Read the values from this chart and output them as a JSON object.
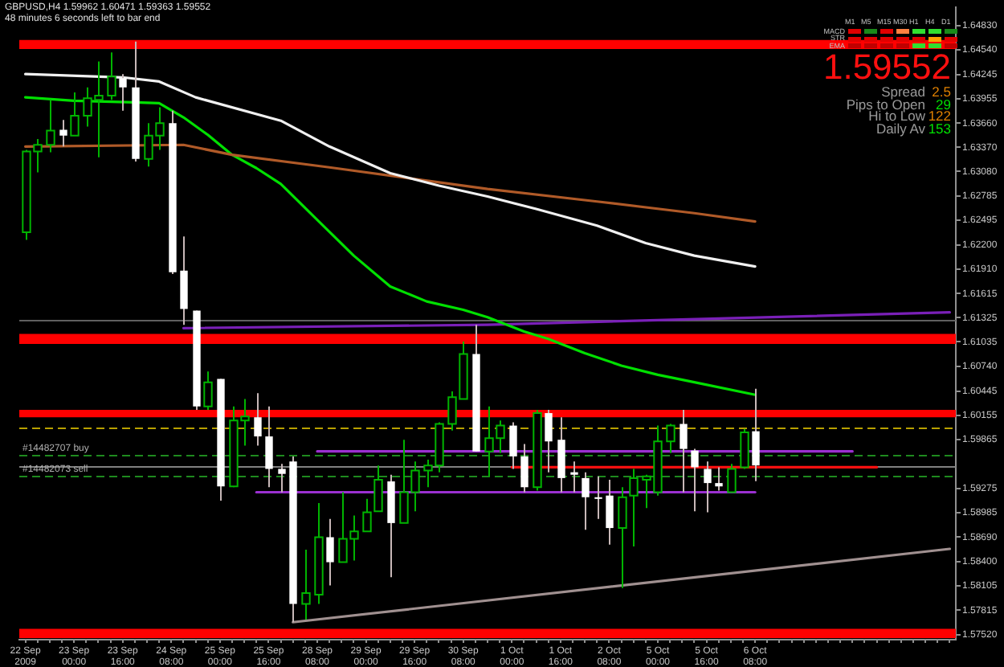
{
  "chart_data": {
    "type": "candlestick",
    "title": "GBPUSD,H4  1.59962 1.60471 1.59363 1.59552",
    "subtitle": "48 minutes 6 seconds left to bar end",
    "categories": [
      "22 Sep 2009",
      null,
      null,
      null,
      "23 Sep 00:00",
      null,
      null,
      null,
      "23 Sep 16:00",
      null,
      null,
      null,
      "24 Sep 08:00",
      null,
      null,
      null,
      "25 Sep 00:00",
      null,
      null,
      null,
      "25 Sep 16:00",
      null,
      null,
      null,
      "28 Sep 08:00",
      null,
      null,
      null,
      "29 Sep 00:00",
      null,
      null,
      null,
      "29 Sep 16:00",
      null,
      null,
      null,
      "30 Sep 08:00",
      null,
      null,
      null,
      "1 Oct 00:00",
      null,
      null,
      null,
      "1 Oct 16:00",
      null,
      null,
      null,
      "2 Oct 08:00",
      null,
      null,
      null,
      "5 Oct 00:00",
      null,
      null,
      null,
      "5 Oct 16:00",
      null,
      null,
      null,
      "6 Oct 08:00",
      null,
      null,
      null,
      null,
      null,
      null,
      null,
      null,
      null,
      null,
      null,
      null,
      null,
      null,
      null,
      null
    ],
    "ohlc": [
      [
        1.6235,
        1.6334,
        1.6226,
        1.6332
      ],
      [
        1.6332,
        1.6347,
        1.6307,
        1.634
      ],
      [
        1.634,
        1.6394,
        1.6331,
        1.6357
      ],
      [
        1.6358,
        1.637,
        1.6338,
        1.6351
      ],
      [
        1.6351,
        1.6403,
        1.6351,
        1.6375
      ],
      [
        1.6375,
        1.6409,
        1.6362,
        1.6396
      ],
      [
        1.6394,
        1.644,
        1.6325,
        1.6399
      ],
      [
        1.6399,
        1.6451,
        1.6394,
        1.6422
      ],
      [
        1.642,
        1.6425,
        1.6381,
        1.6409
      ],
      [
        1.6409,
        1.6464,
        1.632,
        1.6323
      ],
      [
        1.6323,
        1.6366,
        1.6314,
        1.6351
      ],
      [
        1.6351,
        1.6385,
        1.6334,
        1.6366
      ],
      [
        1.6366,
        1.6381,
        1.6185,
        1.6187
      ],
      [
        1.6189,
        1.623,
        1.6124,
        1.6143
      ],
      [
        1.6141,
        1.6141,
        1.6022,
        1.6026
      ],
      [
        1.6026,
        1.6068,
        1.6022,
        1.6055
      ],
      [
        1.6059,
        1.6059,
        1.5913,
        1.593
      ],
      [
        1.593,
        1.6026,
        1.5929,
        1.6009
      ],
      [
        1.6009,
        1.6035,
        1.5979,
        1.6014
      ],
      [
        1.6013,
        1.6042,
        1.5979,
        1.599
      ],
      [
        1.599,
        1.6026,
        1.5929,
        1.5951
      ],
      [
        1.5951,
        1.5957,
        1.5923,
        1.5945
      ],
      [
        1.596,
        1.5966,
        1.5767,
        1.5789
      ],
      [
        1.5789,
        1.5854,
        1.577,
        1.5802
      ],
      [
        1.58,
        1.591,
        1.5789,
        1.5869
      ],
      [
        1.5869,
        1.5891,
        1.5811,
        1.5839
      ],
      [
        1.5839,
        1.5923,
        1.5839,
        1.5867
      ],
      [
        1.5867,
        1.5895,
        1.5841,
        1.5876
      ],
      [
        1.5876,
        1.5915,
        1.5876,
        1.5899
      ],
      [
        1.59,
        1.5955,
        1.59,
        1.5938
      ],
      [
        1.5936,
        1.5944,
        1.5821,
        1.5886
      ],
      [
        1.5886,
        1.5986,
        1.5886,
        1.5923
      ],
      [
        1.5923,
        1.596,
        1.59,
        1.5949
      ],
      [
        1.5949,
        1.5962,
        1.5929,
        1.5955
      ],
      [
        1.5955,
        1.6007,
        1.5947,
        1.6005
      ],
      [
        1.6005,
        1.6044,
        1.5997,
        1.6037
      ],
      [
        1.6035,
        1.6104,
        1.6035,
        1.6089
      ],
      [
        1.6089,
        1.6124,
        1.5972,
        1.5972
      ],
      [
        1.5972,
        1.6026,
        1.5942,
        1.5988
      ],
      [
        1.5988,
        1.6009,
        1.597,
        1.6003
      ],
      [
        1.6003,
        1.6007,
        1.5951,
        1.5966
      ],
      [
        1.5966,
        1.5981,
        1.5923,
        1.5929
      ],
      [
        1.5929,
        1.6022,
        1.5925,
        1.6018
      ],
      [
        1.6018,
        1.6022,
        1.5947,
        1.5984
      ],
      [
        1.5986,
        1.6013,
        1.5923,
        1.594
      ],
      [
        1.5947,
        1.596,
        1.5923,
        1.5944
      ],
      [
        1.594,
        1.5947,
        1.5878,
        1.5917
      ],
      [
        1.5917,
        1.5942,
        1.5891,
        1.5915
      ],
      [
        1.5919,
        1.5938,
        1.586,
        1.588
      ],
      [
        1.588,
        1.5929,
        1.5808,
        1.5917
      ],
      [
        1.5919,
        1.5951,
        1.5858,
        1.594
      ],
      [
        1.5938,
        1.5944,
        1.5904,
        1.5942
      ],
      [
        1.5923,
        1.6003,
        1.5919,
        1.5984
      ],
      [
        1.5984,
        1.6005,
        1.597,
        1.6003
      ],
      [
        1.6005,
        1.6022,
        1.5923,
        1.5975
      ],
      [
        1.5973,
        1.5975,
        1.59,
        1.5953
      ],
      [
        1.5951,
        1.596,
        1.5899,
        1.5934
      ],
      [
        1.5934,
        1.5953,
        1.5925,
        1.593
      ],
      [
        1.5923,
        1.5957,
        1.5923,
        1.5951
      ],
      [
        1.5953,
        1.5999,
        1.5951,
        1.5995
      ],
      [
        1.59962,
        1.60471,
        1.59363,
        1.59552
      ],
      null,
      null,
      null,
      null,
      null,
      null,
      null,
      null,
      null,
      null,
      null,
      null,
      null,
      null,
      null,
      null
    ],
    "series": [
      {
        "type": "line",
        "color": "#f0f0f0",
        "values": [
          1.6425,
          null,
          null,
          null,
          null,
          null,
          null,
          null,
          1.6421,
          null,
          null,
          1.6416,
          null,
          null,
          1.6397,
          null,
          null,
          null,
          null,
          null,
          null,
          1.6369,
          null,
          null,
          null,
          1.6338,
          null,
          null,
          null,
          null,
          1.6306,
          null,
          null,
          null,
          1.6291,
          null,
          null,
          null,
          1.6278,
          null,
          null,
          null,
          1.6263,
          null,
          null,
          null,
          null,
          1.6243,
          null,
          null,
          null,
          1.6222,
          null,
          null,
          null,
          1.6207,
          null,
          null,
          null,
          null,
          1.6194,
          null,
          null,
          null,
          null,
          null,
          null,
          null,
          null,
          null,
          null,
          null,
          null,
          null,
          null,
          null,
          null
        ]
      },
      {
        "type": "line",
        "color": "#b05a28",
        "values": [
          1.6338,
          null,
          null,
          null,
          null,
          null,
          null,
          null,
          null,
          null,
          null,
          null,
          null,
          1.634,
          null,
          null,
          null,
          1.6328,
          null,
          null,
          null,
          null,
          null,
          null,
          null,
          1.6313,
          null,
          null,
          null,
          null,
          null,
          null,
          null,
          null,
          1.6295,
          null,
          null,
          null,
          1.6287,
          null,
          null,
          null,
          null,
          null,
          null,
          null,
          null,
          1.6272,
          null,
          null,
          null,
          null,
          null,
          null,
          null,
          1.6258,
          null,
          null,
          null,
          null,
          1.6248,
          null,
          null,
          null,
          null,
          null,
          null,
          null,
          null,
          null,
          null,
          null,
          null,
          null,
          null,
          null,
          null
        ]
      },
      {
        "type": "line",
        "color": "#00e000",
        "values": [
          1.6397,
          null,
          null,
          null,
          1.6393,
          null,
          null,
          null,
          null,
          1.6391,
          null,
          1.639,
          null,
          1.6373,
          null,
          1.6352,
          null,
          1.6328,
          null,
          1.6312,
          null,
          1.6293,
          null,
          null,
          1.625,
          null,
          null,
          1.6207,
          null,
          null,
          1.617,
          null,
          null,
          1.6152,
          null,
          null,
          1.6142,
          null,
          1.6133,
          null,
          null,
          1.6116,
          null,
          1.6107,
          null,
          null,
          1.609,
          null,
          null,
          1.6075,
          null,
          null,
          1.6064,
          null,
          null,
          1.6055,
          null,
          null,
          null,
          null,
          1.604,
          null,
          null,
          null,
          null,
          null,
          null,
          null,
          null,
          null,
          null,
          null,
          null,
          null,
          null,
          null,
          null
        ]
      },
      {
        "type": "line",
        "color": "#7a20b8",
        "values": [
          null,
          null,
          null,
          null,
          null,
          null,
          null,
          null,
          null,
          null,
          null,
          null,
          null,
          1.612,
          null,
          null,
          null,
          null,
          null,
          null,
          null,
          null,
          null,
          null,
          null,
          null,
          null,
          null,
          null,
          null,
          null,
          null,
          null,
          null,
          null,
          null,
          null,
          null,
          1.6124,
          null,
          null,
          null,
          null,
          null,
          null,
          null,
          null,
          null,
          null,
          null,
          null,
          null,
          null,
          null,
          null,
          null,
          null,
          null,
          null,
          null,
          null,
          null,
          null,
          null,
          null,
          null,
          null,
          null,
          null,
          null,
          null,
          null,
          null,
          null,
          null,
          null,
          1.6139
        ]
      },
      {
        "type": "line",
        "color": "#9a30d0",
        "values": [
          null,
          null,
          null,
          null,
          null,
          null,
          null,
          null,
          null,
          null,
          null,
          null,
          null,
          null,
          null,
          null,
          null,
          null,
          null,
          null,
          null,
          null,
          null,
          null,
          1.5972,
          null,
          null,
          null,
          null,
          null,
          null,
          null,
          null,
          null,
          null,
          null,
          null,
          null,
          null,
          null,
          null,
          null,
          null,
          null,
          null,
          null,
          null,
          null,
          null,
          null,
          null,
          null,
          null,
          null,
          null,
          null,
          null,
          null,
          null,
          null,
          null,
          null,
          null,
          null,
          null,
          null,
          null,
          null,
          1.5972,
          null,
          null,
          null,
          null,
          null,
          null,
          null,
          null
        ]
      },
      {
        "type": "line",
        "color": "#9a30d0",
        "values": [
          null,
          null,
          null,
          null,
          null,
          null,
          null,
          null,
          null,
          null,
          null,
          null,
          null,
          null,
          null,
          null,
          null,
          null,
          null,
          1.5923,
          null,
          null,
          null,
          null,
          null,
          null,
          null,
          null,
          null,
          null,
          null,
          null,
          null,
          null,
          null,
          null,
          null,
          null,
          null,
          null,
          null,
          null,
          null,
          null,
          null,
          null,
          null,
          null,
          null,
          null,
          null,
          null,
          null,
          null,
          null,
          null,
          null,
          null,
          null,
          null,
          1.5923,
          null,
          null,
          null,
          null,
          null,
          null,
          null,
          null,
          null,
          null,
          null,
          null,
          null,
          null,
          null,
          null
        ]
      },
      {
        "type": "line",
        "color": "#ff1010",
        "values": [
          null,
          null,
          null,
          null,
          null,
          null,
          null,
          null,
          null,
          null,
          null,
          null,
          null,
          null,
          null,
          null,
          null,
          null,
          null,
          null,
          null,
          null,
          null,
          null,
          null,
          null,
          null,
          null,
          null,
          null,
          null,
          null,
          null,
          null,
          null,
          null,
          null,
          null,
          null,
          null,
          1.5953,
          null,
          null,
          null,
          null,
          null,
          null,
          null,
          null,
          null,
          null,
          null,
          null,
          null,
          null,
          null,
          null,
          null,
          null,
          null,
          null,
          null,
          null,
          null,
          null,
          null,
          null,
          null,
          null,
          null,
          1.5953,
          null,
          null,
          null,
          null,
          null,
          null
        ]
      },
      {
        "type": "line",
        "color": "#a09090",
        "values": [
          null,
          null,
          null,
          null,
          null,
          null,
          null,
          null,
          null,
          null,
          null,
          null,
          null,
          null,
          null,
          null,
          null,
          null,
          null,
          null,
          null,
          null,
          1.5767,
          null,
          null,
          null,
          null,
          null,
          null,
          null,
          null,
          null,
          null,
          null,
          null,
          null,
          null,
          null,
          null,
          null,
          null,
          null,
          null,
          null,
          null,
          null,
          null,
          null,
          null,
          null,
          null,
          null,
          null,
          null,
          null,
          null,
          null,
          null,
          null,
          null,
          null,
          null,
          null,
          null,
          null,
          null,
          null,
          null,
          null,
          null,
          null,
          null,
          null,
          null,
          null,
          null,
          1.5855
        ]
      }
    ],
    "bands": [
      {
        "axis": "y",
        "from": 1.6455,
        "to": 1.6466,
        "color": "#ff0000"
      },
      {
        "axis": "y",
        "from": 1.6101,
        "to": 1.6113,
        "color": "#ff0000"
      },
      {
        "axis": "y",
        "from": 1.6013,
        "to": 1.6022,
        "color": "#ff0000"
      },
      {
        "axis": "y",
        "from": 1.5748,
        "to": 1.5759,
        "color": "#ff0000"
      }
    ],
    "ref_lines": [
      {
        "axis": "y",
        "value": 1.613,
        "color": "#606060",
        "line_style": "solid"
      },
      {
        "axis": "y",
        "value": 1.6,
        "color": "#b8a000",
        "line_style": "dashed"
      },
      {
        "axis": "y",
        "value": 1.5968,
        "label": "#14482707 buy",
        "color": "#1e8a1e",
        "line_style": "dashed"
      },
      {
        "axis": "y",
        "value": 1.59552,
        "color": "#808080",
        "line_style": "solid"
      },
      {
        "axis": "y",
        "value": 1.5942,
        "label": "#14482073 sell",
        "color": "#1e8a1e",
        "line_style": "dashed"
      }
    ],
    "annotations": [
      "M1",
      "M5",
      "M15",
      "M30",
      "H1",
      "H4",
      "D1",
      "MACD",
      "STR",
      "EMA",
      "1.59552",
      "Spread",
      "2.5",
      "Pips to Open",
      "29",
      "Hi to Low",
      "122",
      "Daily Av",
      "153"
    ],
    "ylim": [
      1.5746,
      1.6505
    ],
    "yticks": [
      {
        "value": 1.6483,
        "label": "1.64830"
      },
      {
        "value": 1.6454,
        "label": "1.64540"
      },
      {
        "value": 1.64245,
        "label": "1.64245"
      },
      {
        "value": 1.63955,
        "label": "1.63955"
      },
      {
        "value": 1.6366,
        "label": "1.63660"
      },
      {
        "value": 1.6337,
        "label": "1.63370"
      },
      {
        "value": 1.6308,
        "label": "1.63080"
      },
      {
        "value": 1.62785,
        "label": "1.62785"
      },
      {
        "value": 1.62495,
        "label": "1.62495"
      },
      {
        "value": 1.622,
        "label": "1.62200"
      },
      {
        "value": 1.6191,
        "label": "1.61910"
      },
      {
        "value": 1.61615,
        "label": "1.61615"
      },
      {
        "value": 1.61325,
        "label": "1.61325"
      },
      {
        "value": 1.61035,
        "label": "1.61035"
      },
      {
        "value": 1.6074,
        "label": "1.60740"
      },
      {
        "value": 1.60445,
        "label": "1.60445"
      },
      {
        "value": 1.60155,
        "label": "1.60155"
      },
      {
        "value": 1.59865,
        "label": "1.59865"
      },
      {
        "value": 1.59275,
        "label": "1.59275"
      },
      {
        "value": 1.58985,
        "label": "1.58985"
      },
      {
        "value": 1.5869,
        "label": "1.58690"
      },
      {
        "value": 1.584,
        "label": "1.58400"
      },
      {
        "value": 1.58105,
        "label": "1.58105"
      },
      {
        "value": 1.57815,
        "label": "1.57815"
      },
      {
        "value": 1.5752,
        "label": "1.57520"
      }
    ],
    "grid": false,
    "legend": false
  }
}
